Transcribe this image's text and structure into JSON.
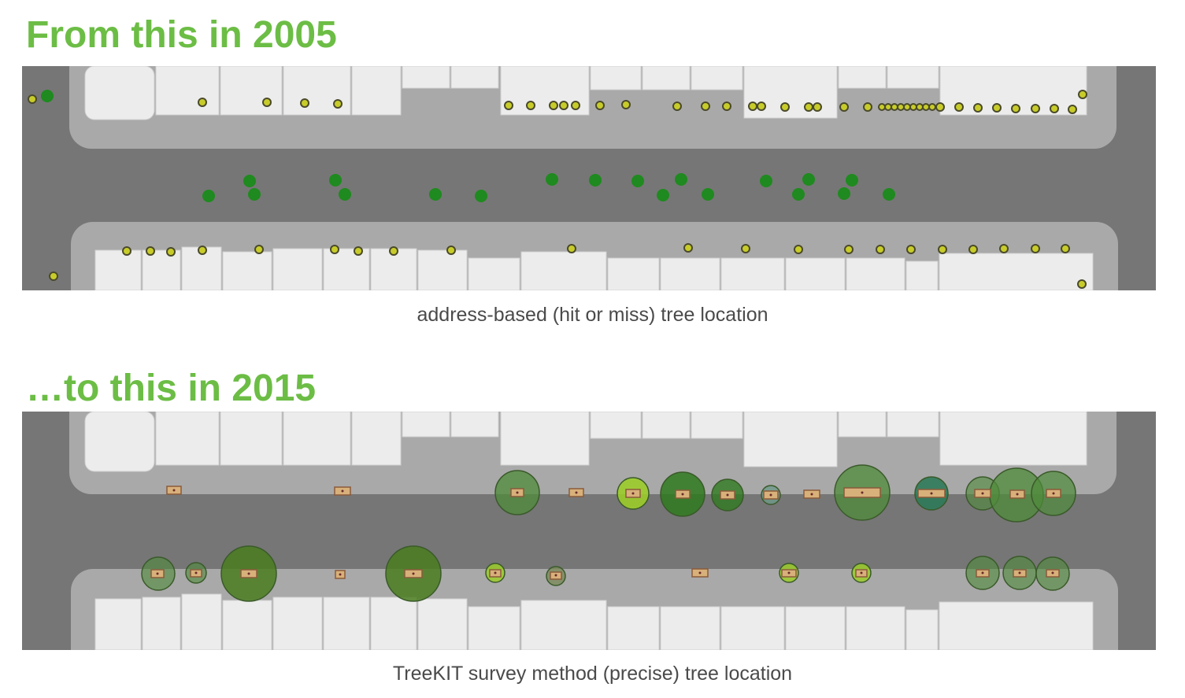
{
  "slide": {
    "accent_color": "#6cbd45",
    "heading_top": "From this in 2005",
    "heading_bottom": "…to this in 2015",
    "caption_top": "address-based (hit or miss) tree location",
    "caption_bottom": "TreeKIT survey method (precise) tree location"
  },
  "map_colors": {
    "road": "#767676",
    "sidewalk": "#a9a9a9",
    "building": "#ececec",
    "address_marker": "#c8cc2a",
    "geocoded_tree": "#1f8a1f",
    "canopy": "#4f8b3a",
    "canopy_light": "#9ccc2a",
    "canopy_teal": "#2f7a5a",
    "tree_pit": "#d8b07a"
  }
}
